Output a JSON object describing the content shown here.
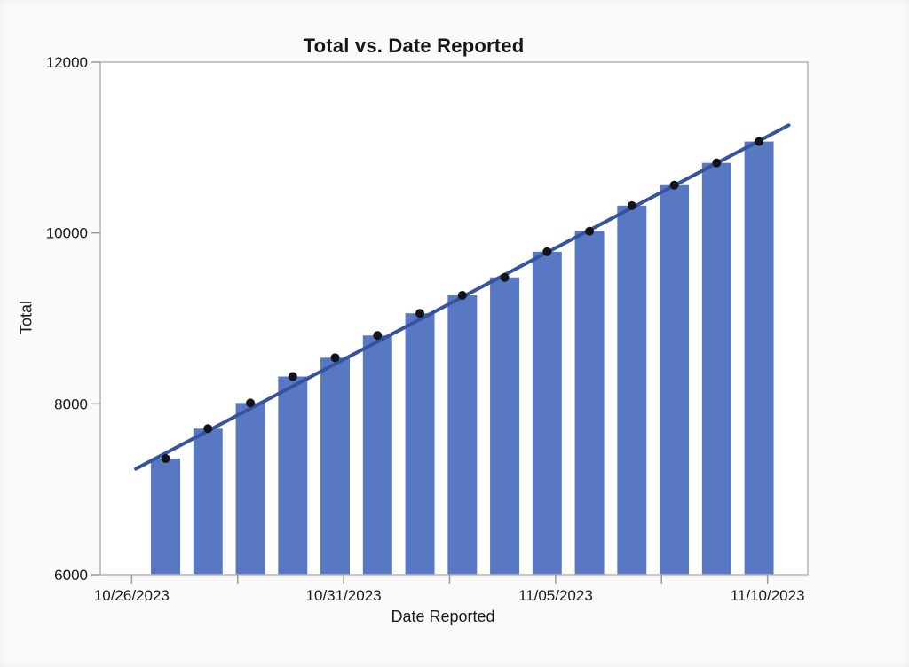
{
  "chart_data": {
    "type": "bar",
    "title": "Total vs. Date Reported",
    "xlabel": "Date Reported",
    "ylabel": "Total",
    "x_days": [
      0.8,
      1.8,
      2.8,
      3.8,
      4.8,
      5.8,
      6.8,
      7.8,
      8.8,
      9.8,
      10.8,
      11.8,
      12.8,
      13.8,
      14.8
    ],
    "values": [
      7360,
      7710,
      8010,
      8320,
      8540,
      8800,
      9060,
      9270,
      9480,
      9780,
      10020,
      10320,
      10560,
      10820,
      11070
    ],
    "markers": {
      "shape": "circle",
      "radius": 5,
      "color": "#13131b"
    },
    "trend_line": {
      "x1_day": 0.1,
      "y1": 7240,
      "x2_day": 15.5,
      "y2": 11260
    },
    "x_axis": {
      "xlim_days": [
        -0.74,
        15.95
      ],
      "ticks": [
        {
          "day": 0,
          "label": "10/26/2023"
        },
        {
          "day": 2.5,
          "label": ""
        },
        {
          "day": 5,
          "label": "10/31/2023"
        },
        {
          "day": 7.5,
          "label": ""
        },
        {
          "day": 10,
          "label": "11/05/2023"
        },
        {
          "day": 12.5,
          "label": ""
        },
        {
          "day": 15,
          "label": "11/10/2023"
        }
      ]
    },
    "y_axis": {
      "ylim": [
        6000,
        12000
      ],
      "ticks": [
        {
          "value": 6000,
          "label": "6000"
        },
        {
          "value": 8000,
          "label": "8000"
        },
        {
          "value": 10000,
          "label": "10000"
        },
        {
          "value": 12000,
          "label": "12000"
        }
      ]
    },
    "grid": false,
    "legend": "none",
    "bar_width_days": 0.69,
    "colors": {
      "bar": "#5878c4",
      "trend": "#35539e",
      "dot": "#13131b",
      "frame": "#b4b4b4",
      "tick": "#9a9a9a",
      "plot_bg": "#ffffff",
      "page_bg": "#fafafa",
      "text": "#1a1a1a"
    }
  }
}
